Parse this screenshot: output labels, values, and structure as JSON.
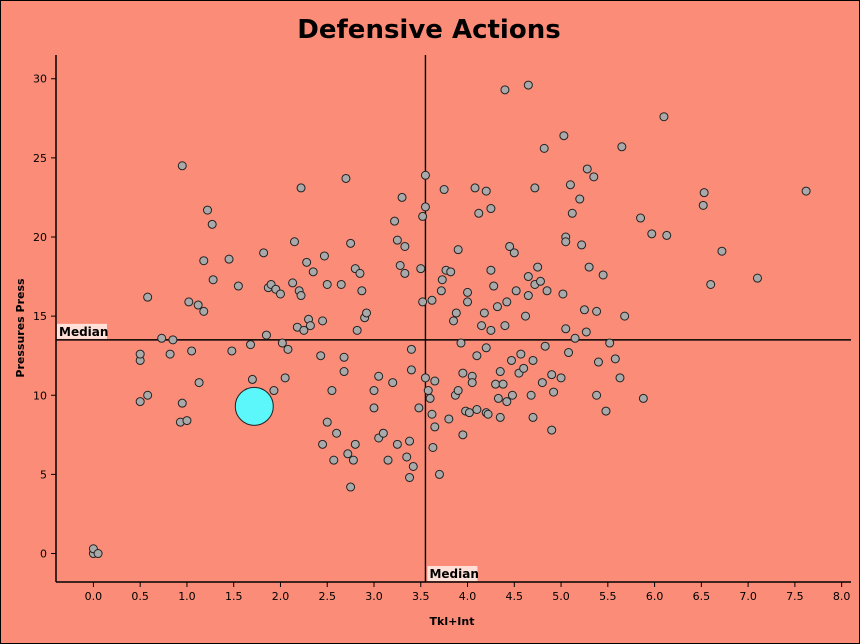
{
  "chart_data": {
    "type": "scatter",
    "title": "Defensive Actions",
    "xlabel": "Tkl+Int",
    "ylabel": "Pressures Press",
    "xlim": [
      -0.4,
      8.1
    ],
    "ylim": [
      -1.8,
      31.5
    ],
    "xticks": [
      "0.0",
      "0.5",
      "1.0",
      "1.5",
      "2.0",
      "2.5",
      "3.0",
      "3.5",
      "4.0",
      "4.5",
      "5.0",
      "5.5",
      "6.0",
      "6.5",
      "7.0",
      "7.5",
      "8.0"
    ],
    "yticks": [
      "0",
      "5",
      "10",
      "15",
      "20",
      "25",
      "30"
    ],
    "median_x": 3.55,
    "median_y": 13.5,
    "median_label": "Median",
    "point_color": "#A9A9A9",
    "highlight_color": "#5CF7FA",
    "highlight": {
      "x": 1.72,
      "y": 9.3
    },
    "points": [
      [
        0.0,
        0.0
      ],
      [
        0.0,
        0.3
      ],
      [
        0.05,
        0.0
      ],
      [
        0.5,
        12.2
      ],
      [
        0.5,
        12.6
      ],
      [
        0.5,
        9.6
      ],
      [
        0.58,
        16.2
      ],
      [
        0.58,
        10.0
      ],
      [
        0.73,
        13.6
      ],
      [
        0.82,
        12.6
      ],
      [
        0.85,
        13.5
      ],
      [
        0.93,
        8.3
      ],
      [
        0.95,
        9.5
      ],
      [
        0.95,
        24.5
      ],
      [
        1.0,
        8.4
      ],
      [
        1.02,
        15.9
      ],
      [
        1.05,
        12.8
      ],
      [
        1.12,
        15.7
      ],
      [
        1.13,
        10.8
      ],
      [
        1.18,
        15.3
      ],
      [
        1.18,
        18.5
      ],
      [
        1.22,
        21.7
      ],
      [
        1.27,
        20.8
      ],
      [
        1.28,
        17.3
      ],
      [
        1.45,
        18.6
      ],
      [
        1.48,
        12.8
      ],
      [
        1.55,
        16.9
      ],
      [
        1.68,
        13.2
      ],
      [
        1.7,
        11.0
      ],
      [
        1.82,
        19.0
      ],
      [
        1.85,
        13.8
      ],
      [
        1.87,
        16.8
      ],
      [
        1.9,
        17.0
      ],
      [
        1.93,
        10.3
      ],
      [
        1.95,
        16.7
      ],
      [
        2.0,
        16.4
      ],
      [
        2.02,
        13.3
      ],
      [
        2.05,
        11.1
      ],
      [
        2.08,
        12.9
      ],
      [
        2.13,
        17.1
      ],
      [
        2.15,
        19.7
      ],
      [
        2.18,
        14.3
      ],
      [
        2.2,
        16.6
      ],
      [
        2.22,
        16.3
      ],
      [
        2.22,
        23.1
      ],
      [
        2.25,
        14.1
      ],
      [
        2.28,
        18.4
      ],
      [
        2.3,
        14.8
      ],
      [
        2.32,
        14.4
      ],
      [
        2.35,
        17.8
      ],
      [
        2.43,
        12.5
      ],
      [
        2.45,
        14.7
      ],
      [
        2.47,
        18.8
      ],
      [
        2.5,
        8.3
      ],
      [
        2.5,
        17.0
      ],
      [
        2.45,
        6.9
      ],
      [
        2.55,
        10.3
      ],
      [
        2.57,
        5.9
      ],
      [
        2.6,
        7.6
      ],
      [
        2.65,
        17.0
      ],
      [
        2.68,
        12.4
      ],
      [
        2.68,
        11.5
      ],
      [
        2.7,
        23.7
      ],
      [
        2.72,
        6.3
      ],
      [
        2.75,
        19.6
      ],
      [
        2.75,
        4.2
      ],
      [
        2.78,
        5.9
      ],
      [
        2.8,
        18.0
      ],
      [
        2.8,
        6.9
      ],
      [
        2.82,
        14.1
      ],
      [
        2.85,
        17.7
      ],
      [
        2.87,
        16.6
      ],
      [
        2.9,
        14.9
      ],
      [
        2.92,
        15.2
      ],
      [
        3.0,
        9.2
      ],
      [
        3.0,
        10.3
      ],
      [
        3.05,
        7.3
      ],
      [
        3.05,
        11.2
      ],
      [
        3.1,
        7.6
      ],
      [
        3.15,
        5.9
      ],
      [
        3.2,
        10.8
      ],
      [
        3.22,
        21.0
      ],
      [
        3.25,
        6.9
      ],
      [
        3.25,
        19.8
      ],
      [
        3.28,
        18.2
      ],
      [
        3.3,
        22.5
      ],
      [
        3.33,
        17.7
      ],
      [
        3.33,
        19.4
      ],
      [
        3.35,
        6.1
      ],
      [
        3.38,
        4.8
      ],
      [
        3.38,
        7.1
      ],
      [
        3.4,
        12.9
      ],
      [
        3.4,
        11.6
      ],
      [
        3.42,
        5.5
      ],
      [
        3.48,
        9.2
      ],
      [
        3.5,
        18.0
      ],
      [
        3.52,
        15.9
      ],
      [
        3.52,
        21.3
      ],
      [
        3.55,
        21.9
      ],
      [
        3.55,
        23.9
      ],
      [
        3.55,
        11.1
      ],
      [
        3.58,
        10.3
      ],
      [
        3.6,
        9.8
      ],
      [
        3.62,
        8.8
      ],
      [
        3.62,
        16.0
      ],
      [
        3.63,
        6.7
      ],
      [
        3.65,
        10.9
      ],
      [
        3.65,
        8.0
      ],
      [
        3.7,
        5.0
      ],
      [
        3.72,
        16.6
      ],
      [
        3.73,
        17.3
      ],
      [
        3.75,
        23.0
      ],
      [
        3.77,
        17.9
      ],
      [
        3.8,
        8.5
      ],
      [
        3.82,
        17.8
      ],
      [
        3.85,
        14.7
      ],
      [
        3.87,
        10.0
      ],
      [
        3.88,
        15.2
      ],
      [
        3.9,
        10.3
      ],
      [
        3.9,
        19.2
      ],
      [
        3.93,
        13.3
      ],
      [
        3.95,
        11.4
      ],
      [
        3.95,
        7.5
      ],
      [
        3.98,
        9.0
      ],
      [
        4.0,
        15.9
      ],
      [
        4.0,
        16.5
      ],
      [
        4.02,
        8.9
      ],
      [
        4.05,
        11.2
      ],
      [
        4.05,
        10.8
      ],
      [
        4.08,
        23.1
      ],
      [
        4.1,
        9.1
      ],
      [
        4.1,
        12.5
      ],
      [
        4.12,
        21.5
      ],
      [
        4.15,
        14.4
      ],
      [
        4.18,
        15.2
      ],
      [
        4.2,
        13.0
      ],
      [
        4.2,
        8.9
      ],
      [
        4.2,
        22.9
      ],
      [
        4.22,
        8.8
      ],
      [
        4.25,
        14.1
      ],
      [
        4.25,
        17.9
      ],
      [
        4.25,
        21.8
      ],
      [
        4.28,
        16.9
      ],
      [
        4.3,
        10.7
      ],
      [
        4.32,
        15.6
      ],
      [
        4.33,
        9.8
      ],
      [
        4.35,
        11.5
      ],
      [
        4.35,
        8.6
      ],
      [
        4.38,
        10.7
      ],
      [
        4.4,
        29.3
      ],
      [
        4.4,
        14.4
      ],
      [
        4.42,
        15.9
      ],
      [
        4.42,
        9.6
      ],
      [
        4.45,
        19.4
      ],
      [
        4.47,
        12.2
      ],
      [
        4.48,
        10.0
      ],
      [
        4.5,
        19.0
      ],
      [
        4.52,
        16.6
      ],
      [
        4.55,
        11.4
      ],
      [
        4.57,
        12.6
      ],
      [
        4.6,
        11.7
      ],
      [
        4.62,
        15.0
      ],
      [
        4.65,
        16.3
      ],
      [
        4.65,
        17.5
      ],
      [
        4.65,
        29.6
      ],
      [
        4.68,
        10.0
      ],
      [
        4.7,
        8.6
      ],
      [
        4.7,
        12.2
      ],
      [
        4.72,
        17.0
      ],
      [
        4.72,
        23.1
      ],
      [
        4.75,
        18.1
      ],
      [
        4.78,
        17.2
      ],
      [
        4.8,
        10.8
      ],
      [
        4.82,
        25.6
      ],
      [
        4.83,
        13.1
      ],
      [
        4.85,
        16.6
      ],
      [
        4.9,
        11.3
      ],
      [
        4.9,
        7.8
      ],
      [
        4.92,
        10.2
      ],
      [
        5.0,
        11.1
      ],
      [
        5.02,
        16.4
      ],
      [
        5.03,
        26.4
      ],
      [
        5.05,
        20.0
      ],
      [
        5.05,
        19.7
      ],
      [
        5.05,
        14.2
      ],
      [
        5.08,
        12.7
      ],
      [
        5.1,
        23.3
      ],
      [
        5.12,
        21.5
      ],
      [
        5.15,
        13.6
      ],
      [
        5.2,
        22.4
      ],
      [
        5.22,
        19.5
      ],
      [
        5.25,
        15.4
      ],
      [
        5.27,
        14.0
      ],
      [
        5.28,
        24.3
      ],
      [
        5.3,
        18.1
      ],
      [
        5.35,
        23.8
      ],
      [
        5.38,
        10.0
      ],
      [
        5.38,
        15.3
      ],
      [
        5.4,
        12.1
      ],
      [
        5.45,
        17.6
      ],
      [
        5.48,
        9.0
      ],
      [
        5.52,
        13.3
      ],
      [
        5.58,
        12.3
      ],
      [
        5.63,
        11.1
      ],
      [
        5.65,
        25.7
      ],
      [
        5.68,
        15.0
      ],
      [
        5.85,
        21.2
      ],
      [
        5.88,
        9.8
      ],
      [
        5.97,
        20.2
      ],
      [
        6.1,
        27.6
      ],
      [
        6.13,
        20.1
      ],
      [
        6.52,
        22.0
      ],
      [
        6.53,
        22.8
      ],
      [
        6.6,
        17.0
      ],
      [
        6.72,
        19.1
      ],
      [
        7.1,
        17.4
      ],
      [
        7.62,
        22.9
      ]
    ]
  }
}
